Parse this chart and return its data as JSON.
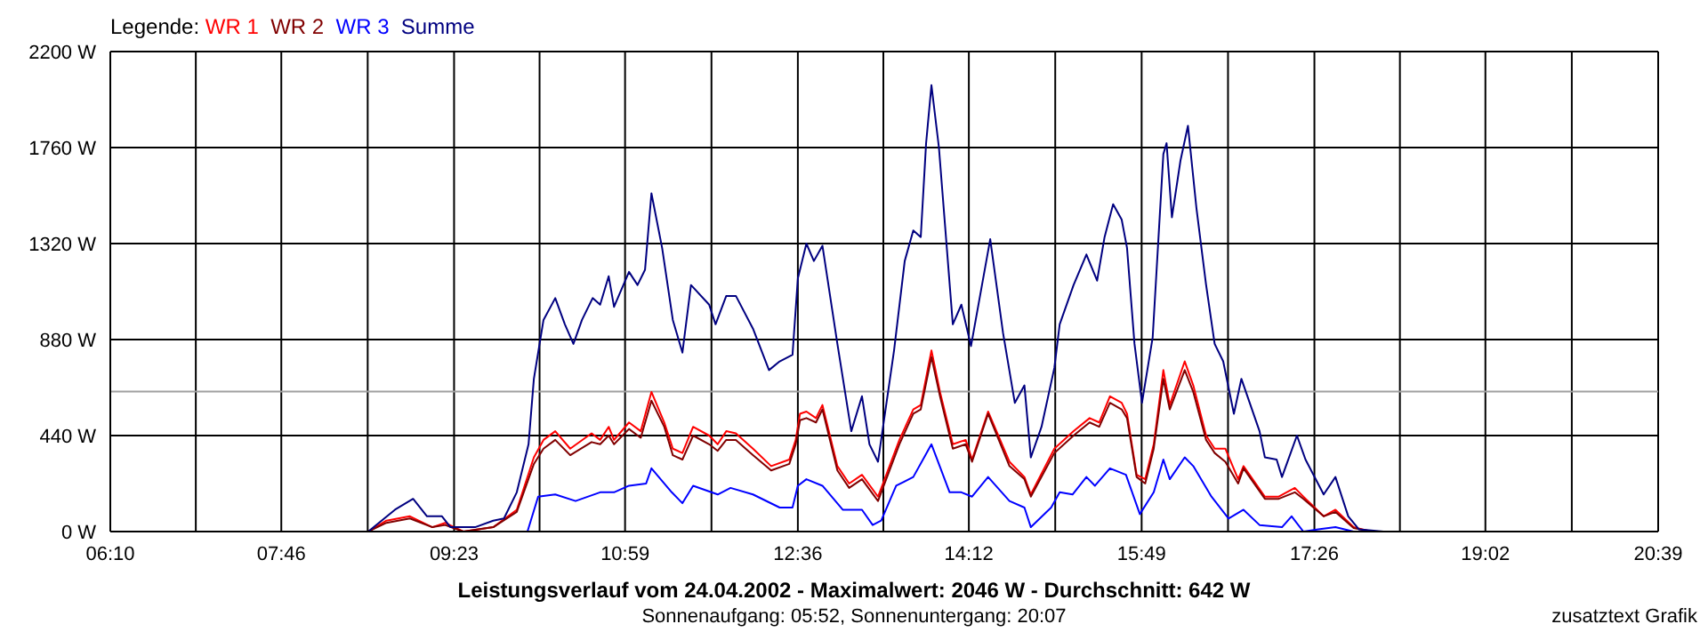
{
  "chart_data": {
    "type": "line",
    "title": "Leistungsverlauf vom 24.04.2002 - Maximalwert: 2046 W - Durchschnitt: 642 W",
    "subtitle": "Sonnenaufgang: 05:52, Sonnenuntergang: 20:07",
    "annotations": [
      "zusatztext Grafik"
    ],
    "legend_title": "Legende:",
    "legend": "top left",
    "grid": true,
    "xlim": [
      6.1667,
      20.65
    ],
    "xticks": [
      {
        "value": 6.1667,
        "label": "06:10"
      },
      {
        "value": 6.9667,
        "label": null
      },
      {
        "value": 7.7667,
        "label": "07:46"
      },
      {
        "value": 8.575,
        "label": null
      },
      {
        "value": 9.3833,
        "label": "09:23"
      },
      {
        "value": 10.1833,
        "label": null
      },
      {
        "value": 10.9833,
        "label": "10:59"
      },
      {
        "value": 11.7917,
        "label": null
      },
      {
        "value": 12.6,
        "label": "12:36"
      },
      {
        "value": 13.4,
        "label": null
      },
      {
        "value": 14.2,
        "label": "14:12"
      },
      {
        "value": 15.0083,
        "label": null
      },
      {
        "value": 15.8167,
        "label": "15:49"
      },
      {
        "value": 16.625,
        "label": null
      },
      {
        "value": 17.4333,
        "label": "17:26"
      },
      {
        "value": 18.2333,
        "label": null
      },
      {
        "value": 19.0333,
        "label": "19:02"
      },
      {
        "value": 19.8417,
        "label": null
      },
      {
        "value": 20.65,
        "label": "20:39"
      }
    ],
    "ylim": [
      0,
      2200
    ],
    "yticks": [
      {
        "value": 0,
        "label": "0 W"
      },
      {
        "value": 440,
        "label": "440 W"
      },
      {
        "value": 880,
        "label": "880 W"
      },
      {
        "value": 1320,
        "label": "1320 W"
      },
      {
        "value": 1760,
        "label": "1760 W"
      },
      {
        "value": 2200,
        "label": "2200 W"
      }
    ],
    "ref_lines": [
      {
        "axis": "y",
        "value": 642,
        "color": "#a0a0a0"
      }
    ],
    "series": [
      {
        "name": "WR 1",
        "color": "#ff0000",
        "x": [
          8.58,
          8.75,
          8.97,
          9.18,
          9.3,
          9.47,
          9.75,
          9.97,
          10.13,
          10.22,
          10.33,
          10.47,
          10.67,
          10.75,
          10.83,
          10.88,
          11.02,
          11.13,
          11.23,
          11.35,
          11.43,
          11.52,
          11.62,
          11.77,
          11.85,
          11.93,
          12.02,
          12.18,
          12.35,
          12.52,
          12.58,
          12.62,
          12.68,
          12.77,
          12.83,
          12.97,
          13.08,
          13.2,
          13.35,
          13.55,
          13.68,
          13.75,
          13.85,
          13.93,
          14.05,
          14.17,
          14.23,
          14.38,
          14.58,
          14.72,
          14.78,
          15.0,
          15.18,
          15.33,
          15.42,
          15.52,
          15.63,
          15.68,
          15.77,
          15.85,
          15.93,
          16.02,
          16.08,
          16.22,
          16.3,
          16.42,
          16.5,
          16.6,
          16.72,
          16.77,
          16.97,
          17.1,
          17.25,
          17.33,
          17.52,
          17.63,
          17.8,
          17.97
        ],
        "values": [
          0,
          50,
          70,
          20,
          40,
          0,
          20,
          100,
          340,
          420,
          460,
          380,
          450,
          420,
          480,
          420,
          500,
          460,
          640,
          500,
          380,
          360,
          480,
          440,
          400,
          460,
          450,
          380,
          300,
          330,
          420,
          540,
          550,
          520,
          580,
          300,
          220,
          260,
          160,
          420,
          560,
          580,
          830,
          640,
          400,
          420,
          330,
          550,
          320,
          250,
          170,
          380,
          460,
          520,
          500,
          620,
          590,
          540,
          260,
          240,
          400,
          740,
          580,
          780,
          670,
          440,
          380,
          380,
          240,
          300,
          160,
          160,
          200,
          160,
          70,
          100,
          20,
          0
        ]
      },
      {
        "name": "WR 2",
        "color": "#800000",
        "x": [
          8.58,
          8.75,
          8.97,
          9.18,
          9.3,
          9.47,
          9.75,
          9.97,
          10.13,
          10.22,
          10.33,
          10.47,
          10.67,
          10.75,
          10.83,
          10.88,
          11.02,
          11.13,
          11.23,
          11.35,
          11.43,
          11.52,
          11.62,
          11.77,
          11.85,
          11.93,
          12.02,
          12.18,
          12.35,
          12.52,
          12.58,
          12.62,
          12.68,
          12.77,
          12.83,
          12.97,
          13.08,
          13.2,
          13.35,
          13.55,
          13.68,
          13.75,
          13.85,
          13.93,
          14.05,
          14.17,
          14.23,
          14.38,
          14.58,
          14.72,
          14.78,
          15.0,
          15.18,
          15.33,
          15.42,
          15.52,
          15.63,
          15.68,
          15.77,
          15.85,
          15.93,
          16.02,
          16.08,
          16.22,
          16.3,
          16.42,
          16.5,
          16.6,
          16.72,
          16.77,
          16.97,
          17.1,
          17.25,
          17.33,
          17.52,
          17.63,
          17.8,
          17.97
        ],
        "values": [
          0,
          40,
          60,
          20,
          30,
          0,
          20,
          90,
          310,
          380,
          420,
          350,
          410,
          400,
          440,
          400,
          470,
          430,
          600,
          480,
          350,
          330,
          440,
          400,
          370,
          420,
          420,
          350,
          280,
          310,
          400,
          510,
          520,
          500,
          560,
          280,
          200,
          240,
          140,
          400,
          540,
          560,
          800,
          620,
          380,
          400,
          320,
          540,
          300,
          240,
          160,
          360,
          440,
          500,
          480,
          590,
          560,
          520,
          250,
          220,
          380,
          700,
          560,
          740,
          640,
          420,
          360,
          320,
          220,
          290,
          150,
          150,
          180,
          150,
          70,
          90,
          16,
          0
        ]
      },
      {
        "name": "WR 3",
        "color": "#0000ff",
        "x": [
          10.07,
          10.17,
          10.33,
          10.52,
          10.75,
          10.88,
          11.02,
          11.18,
          11.23,
          11.42,
          11.52,
          11.62,
          11.85,
          11.97,
          12.18,
          12.43,
          12.55,
          12.6,
          12.68,
          12.83,
          13.02,
          13.2,
          13.3,
          13.38,
          13.52,
          13.68,
          13.85,
          14.02,
          14.13,
          14.23,
          14.38,
          14.58,
          14.72,
          14.78,
          14.97,
          15.05,
          15.17,
          15.3,
          15.38,
          15.52,
          15.67,
          15.8,
          15.93,
          16.02,
          16.08,
          16.22,
          16.3,
          16.47,
          16.63,
          16.77,
          16.92,
          17.13,
          17.22,
          17.33,
          17.47,
          17.63,
          17.8
        ],
        "values": [
          0,
          160,
          170,
          140,
          180,
          180,
          210,
          220,
          290,
          180,
          130,
          210,
          170,
          200,
          170,
          110,
          110,
          210,
          240,
          210,
          100,
          100,
          30,
          50,
          210,
          250,
          400,
          180,
          180,
          160,
          250,
          140,
          110,
          20,
          110,
          180,
          170,
          250,
          210,
          290,
          260,
          80,
          180,
          330,
          240,
          340,
          300,
          160,
          60,
          100,
          30,
          20,
          70,
          0,
          10,
          20,
          0
        ]
      },
      {
        "name": "Summe",
        "color": "#000080",
        "x": [
          8.58,
          8.83,
          9.0,
          9.13,
          9.27,
          9.35,
          9.58,
          9.75,
          9.85,
          9.97,
          10.08,
          10.13,
          10.22,
          10.33,
          10.42,
          10.5,
          10.58,
          10.68,
          10.75,
          10.83,
          10.88,
          11.02,
          11.1,
          11.17,
          11.23,
          11.33,
          11.43,
          11.52,
          11.6,
          11.77,
          11.83,
          11.93,
          12.02,
          12.18,
          12.33,
          12.43,
          12.55,
          12.6,
          12.68,
          12.75,
          12.83,
          12.97,
          13.1,
          13.2,
          13.27,
          13.35,
          13.5,
          13.6,
          13.68,
          13.75,
          13.8,
          13.85,
          13.92,
          14.05,
          14.13,
          14.22,
          14.4,
          14.52,
          14.63,
          14.72,
          14.78,
          14.88,
          15.0,
          15.05,
          15.18,
          15.3,
          15.4,
          15.47,
          15.55,
          15.63,
          15.68,
          15.75,
          15.82,
          15.92,
          16.02,
          16.05,
          16.1,
          16.18,
          16.25,
          16.33,
          16.42,
          16.5,
          16.58,
          16.68,
          16.75,
          16.92,
          16.97,
          17.08,
          17.13,
          17.27,
          17.35,
          17.52,
          17.63,
          17.75,
          17.85,
          18.08
        ],
        "values": [
          0,
          100,
          150,
          70,
          70,
          20,
          20,
          50,
          60,
          180,
          400,
          700,
          970,
          1070,
          950,
          860,
          970,
          1070,
          1040,
          1170,
          1030,
          1190,
          1130,
          1200,
          1550,
          1300,
          970,
          820,
          1130,
          1040,
          950,
          1080,
          1080,
          930,
          740,
          780,
          810,
          1160,
          1320,
          1240,
          1310,
          860,
          460,
          620,
          400,
          320,
          830,
          1240,
          1380,
          1350,
          1780,
          2046,
          1760,
          950,
          1040,
          850,
          1340,
          910,
          590,
          670,
          340,
          480,
          750,
          950,
          1130,
          1270,
          1150,
          1350,
          1500,
          1430,
          1300,
          860,
          590,
          890,
          1730,
          1780,
          1440,
          1700,
          1860,
          1480,
          1130,
          860,
          780,
          540,
          700,
          460,
          340,
          330,
          250,
          440,
          330,
          170,
          250,
          70,
          10,
          0
        ]
      }
    ]
  }
}
